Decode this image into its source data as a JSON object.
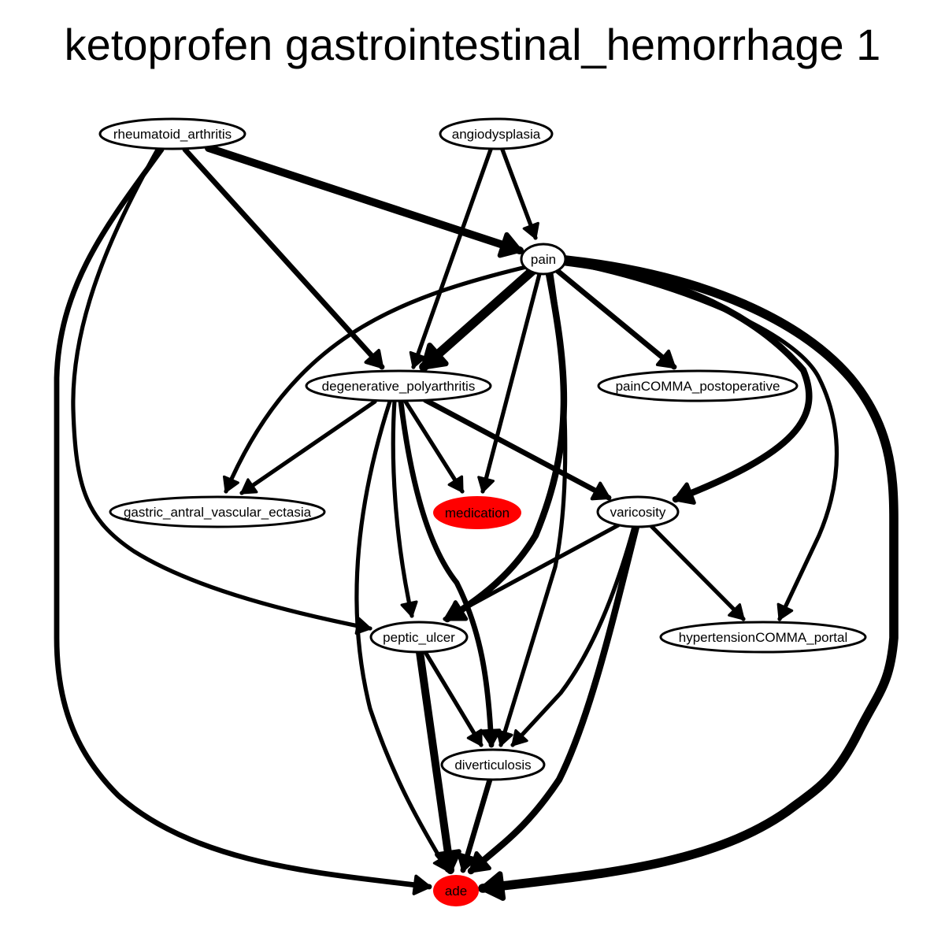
{
  "title": "ketoprofen gastrointestinal_hemorrhage 1",
  "colors": {
    "highlight": "#ff0000",
    "edge": "#000000",
    "node_fill": "#ffffff"
  },
  "nodes": [
    {
      "id": "rheumatoid_arthritis",
      "label": "rheumatoid_arthritis",
      "highlight": false
    },
    {
      "id": "angiodysplasia",
      "label": "angiodysplasia",
      "highlight": false
    },
    {
      "id": "pain",
      "label": "pain",
      "highlight": false
    },
    {
      "id": "degenerative_polyarthritis",
      "label": "degenerative_polyarthritis",
      "highlight": false
    },
    {
      "id": "painCOMMA_postoperative",
      "label": "painCOMMA_postoperative",
      "highlight": false
    },
    {
      "id": "gastric_antral_vascular_ectasia",
      "label": "gastric_antral_vascular_ectasia",
      "highlight": false
    },
    {
      "id": "medication",
      "label": "medication",
      "highlight": true
    },
    {
      "id": "varicosity",
      "label": "varicosity",
      "highlight": false
    },
    {
      "id": "peptic_ulcer",
      "label": "peptic_ulcer",
      "highlight": false
    },
    {
      "id": "hypertensionCOMMA_portal",
      "label": "hypertensionCOMMA_portal",
      "highlight": false
    },
    {
      "id": "diverticulosis",
      "label": "diverticulosis",
      "highlight": false
    },
    {
      "id": "ade",
      "label": "ade",
      "highlight": true
    }
  ],
  "edges": [
    {
      "from": "rheumatoid_arthritis",
      "to": "pain",
      "weight": 5
    },
    {
      "from": "rheumatoid_arthritis",
      "to": "degenerative_polyarthritis",
      "weight": 3
    },
    {
      "from": "rheumatoid_arthritis",
      "to": "peptic_ulcer",
      "weight": 2
    },
    {
      "from": "rheumatoid_arthritis",
      "to": "ade",
      "weight": 3
    },
    {
      "from": "angiodysplasia",
      "to": "pain",
      "weight": 2
    },
    {
      "from": "angiodysplasia",
      "to": "degenerative_polyarthritis",
      "weight": 2
    },
    {
      "from": "pain",
      "to": "degenerative_polyarthritis",
      "weight": 6
    },
    {
      "from": "pain",
      "to": "painCOMMA_postoperative",
      "weight": 3
    },
    {
      "from": "pain",
      "to": "gastric_antral_vascular_ectasia",
      "weight": 2
    },
    {
      "from": "pain",
      "to": "medication",
      "weight": 2
    },
    {
      "from": "pain",
      "to": "varicosity",
      "weight": 4
    },
    {
      "from": "pain",
      "to": "peptic_ulcer",
      "weight": 4
    },
    {
      "from": "pain",
      "to": "hypertensionCOMMA_portal",
      "weight": 2
    },
    {
      "from": "pain",
      "to": "diverticulosis",
      "weight": 2
    },
    {
      "from": "pain",
      "to": "ade",
      "weight": 6
    },
    {
      "from": "degenerative_polyarthritis",
      "to": "gastric_antral_vascular_ectasia",
      "weight": 2
    },
    {
      "from": "degenerative_polyarthritis",
      "to": "medication",
      "weight": 2
    },
    {
      "from": "degenerative_polyarthritis",
      "to": "varicosity",
      "weight": 3
    },
    {
      "from": "degenerative_polyarthritis",
      "to": "peptic_ulcer",
      "weight": 2
    },
    {
      "from": "degenerative_polyarthritis",
      "to": "diverticulosis",
      "weight": 3
    },
    {
      "from": "degenerative_polyarthritis",
      "to": "ade",
      "weight": 2
    },
    {
      "from": "varicosity",
      "to": "peptic_ulcer",
      "weight": 2
    },
    {
      "from": "varicosity",
      "to": "hypertensionCOMMA_portal",
      "weight": 2
    },
    {
      "from": "varicosity",
      "to": "diverticulosis",
      "weight": 2
    },
    {
      "from": "varicosity",
      "to": "ade",
      "weight": 4
    },
    {
      "from": "peptic_ulcer",
      "to": "diverticulosis",
      "weight": 2
    },
    {
      "from": "peptic_ulcer",
      "to": "ade",
      "weight": 5
    },
    {
      "from": "diverticulosis",
      "to": "ade",
      "weight": 3
    }
  ]
}
